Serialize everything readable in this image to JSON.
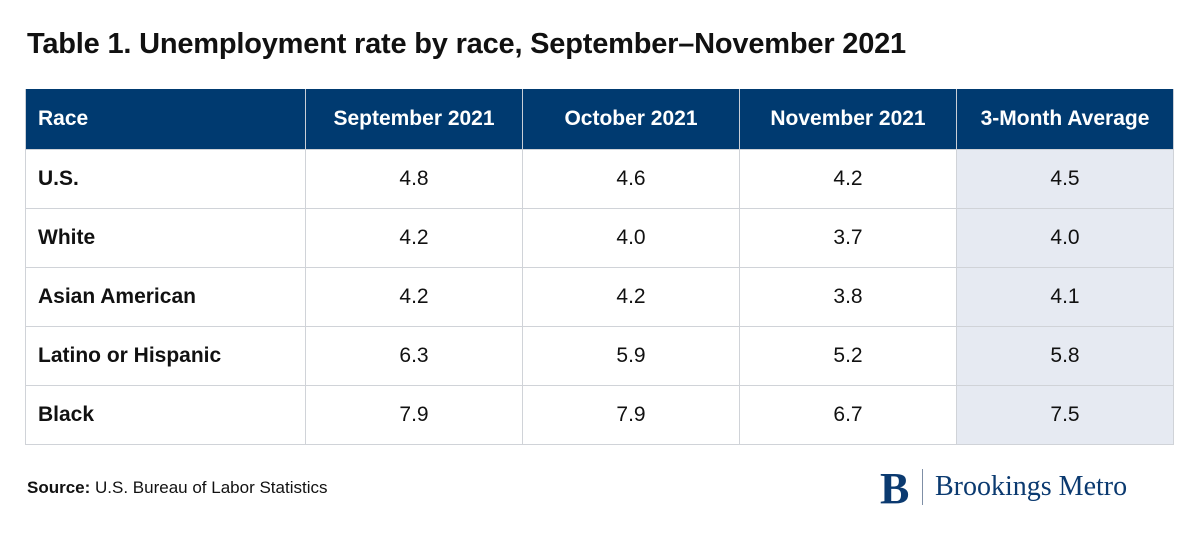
{
  "title": "Table 1. Unemployment rate by race, September–November 2021",
  "chart_data": {
    "type": "table",
    "columns": [
      "Race",
      "September 2021",
      "October 2021",
      "November 2021",
      "3-Month Average"
    ],
    "rows": [
      {
        "label": "U.S.",
        "values": [
          "4.8",
          "4.6",
          "4.2",
          "4.5"
        ]
      },
      {
        "label": "White",
        "values": [
          "4.2",
          "4.0",
          "3.7",
          "4.0"
        ]
      },
      {
        "label": "Asian American",
        "values": [
          "4.2",
          "4.2",
          "3.8",
          "4.1"
        ]
      },
      {
        "label": "Latino or Hispanic",
        "values": [
          "6.3",
          "5.9",
          "5.2",
          "5.8"
        ]
      },
      {
        "label": "Black",
        "values": [
          "7.9",
          "7.9",
          "6.7",
          "7.5"
        ]
      }
    ]
  },
  "source": {
    "label": "Source:",
    "text": " U.S. Bureau of Labor Statistics"
  },
  "logo": {
    "icon": "brookings-b-icon",
    "name": "Brookings Metro"
  },
  "colors": {
    "header_bg": "#003a70",
    "average_column_bg": "#e6eaf2",
    "brand": "#0b3a70"
  }
}
